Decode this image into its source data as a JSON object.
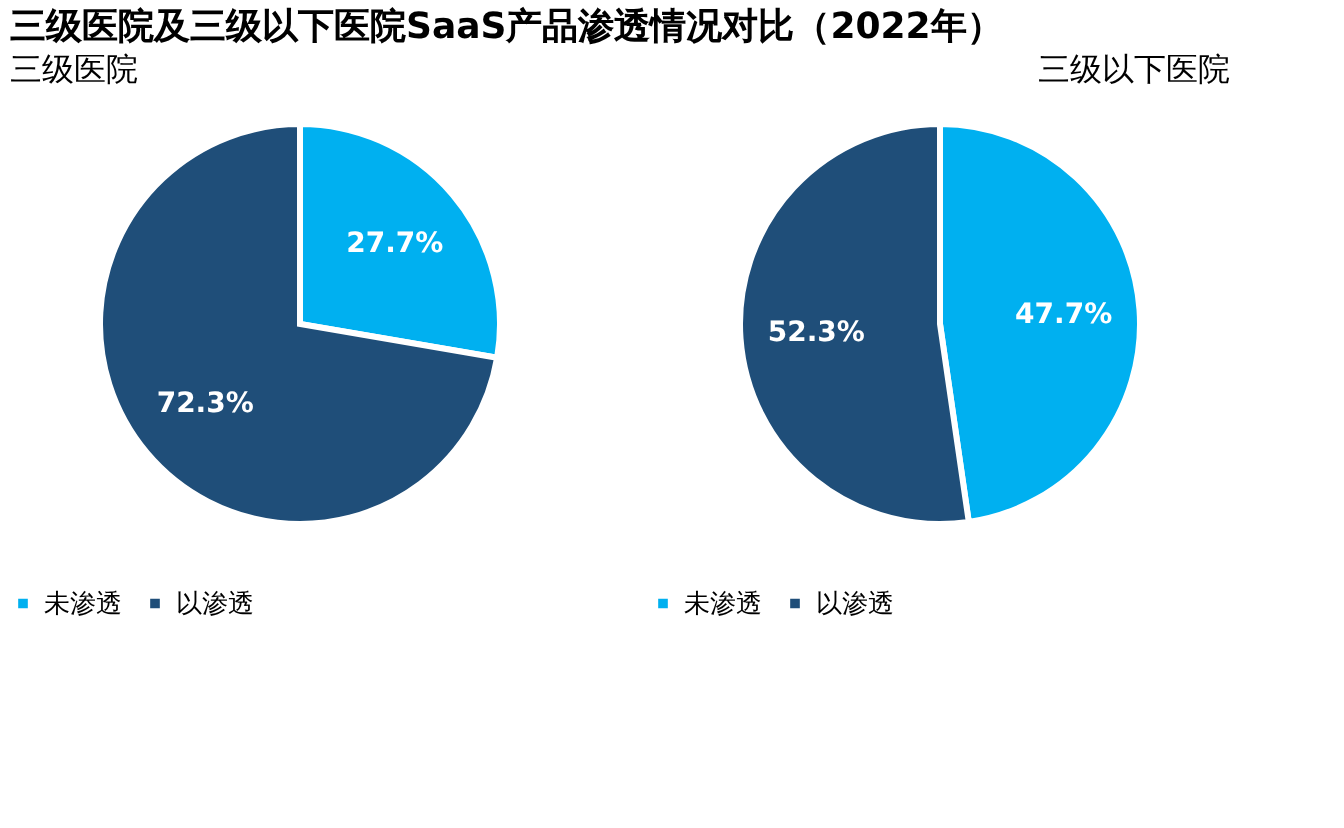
{
  "chart_data": [
    {
      "type": "pie",
      "title": "三级医院及三级以下医院SaaS产品渗透情况对比（2022年）",
      "subtitle": "三级医院",
      "categories": [
        "未渗透",
        "以渗透"
      ],
      "values": [
        27.7,
        72.3
      ],
      "colors": [
        "#00b0f0",
        "#1f4e79"
      ],
      "value_labels": [
        "27.7%",
        "72.3%"
      ],
      "legend": "bottom"
    },
    {
      "type": "pie",
      "subtitle": "三级以下医院",
      "categories": [
        "未渗透",
        "以渗透"
      ],
      "values": [
        47.7,
        52.3
      ],
      "colors": [
        "#00b0f0",
        "#1f4e79"
      ],
      "value_labels": [
        "47.7%",
        "52.3%"
      ],
      "legend": "bottom"
    }
  ]
}
